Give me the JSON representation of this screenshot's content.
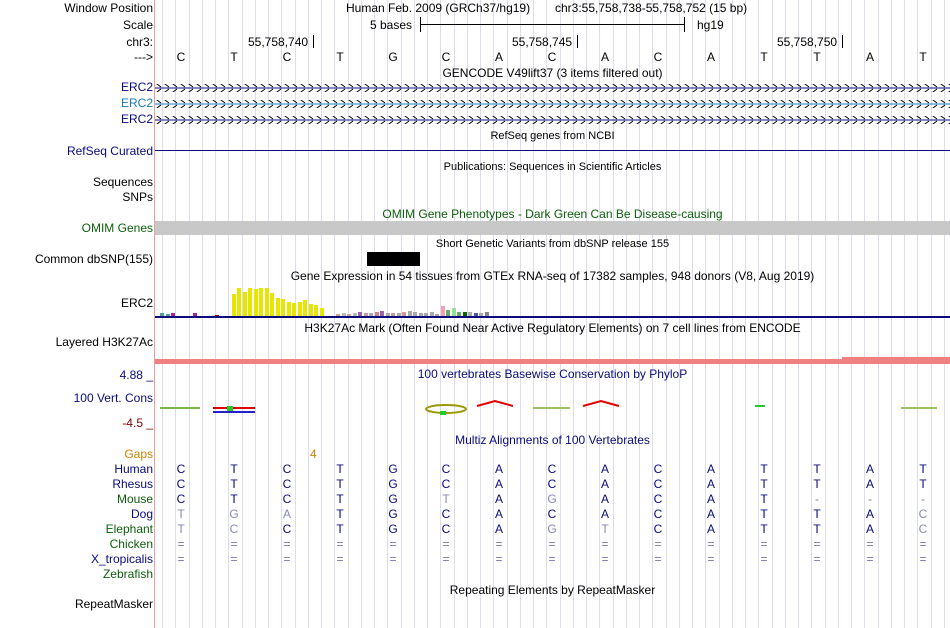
{
  "header": {
    "window_position_label": "Window Position",
    "scale_label": "Scale",
    "chr_label": "chr3:",
    "arrow_label": "--->",
    "assembly": "Human Feb. 2009 (GRCh37/hg19)",
    "position": "chr3:55,758,738-55,758,752 (15 bp)",
    "scale_value": "5 bases",
    "scale_db": "hg19",
    "coords": [
      "55,758,740",
      "55,758,745",
      "55,758,750"
    ]
  },
  "sequence": [
    "C",
    "T",
    "C",
    "T",
    "G",
    "C",
    "A",
    "C",
    "A",
    "C",
    "A",
    "T",
    "T",
    "A",
    "T"
  ],
  "tracks": {
    "gencode_title": "GENCODE V49lift37 (3 items filtered out)",
    "gencode_items": [
      "ERC2",
      "ERC2",
      "ERC2"
    ],
    "refseq_title": "RefSeq genes from NCBI",
    "refseq_label": "RefSeq Curated",
    "publications_title": "Publications: Sequences in Scientific Articles",
    "sequences_label": "Sequences",
    "snps_label": "SNPs",
    "omim_title": "OMIM Gene Phenotypes - Dark Green Can Be Disease-causing",
    "omim_label": "OMIM Genes",
    "dbsnp_title": "Short Genetic Variants from dbSNP release 155",
    "dbsnp_label": "Common dbSNP(155)",
    "gtex_title": "Gene Expression in 54 tissues from GTEx RNA-seq of 17382 samples, 948 donors (V8, Aug 2019)",
    "gtex_label": "ERC2",
    "h3k27ac_title": "H3K27Ac Mark (Often Found Near Active Regulatory Elements) on 7 cell lines from ENCODE",
    "h3k27ac_label": "Layered H3K27Ac",
    "phylop_title": "100 vertebrates Basewise Conservation by PhyloP",
    "phylop_label": "100 Vert. Cons",
    "phylop_max": "4.88 _",
    "phylop_min": "-4.5 _",
    "multiz_title": "Multiz Alignments of 100 Vertebrates",
    "gaps_label": "Gaps",
    "gaps_value": "4",
    "repeat_title": "Repeating Elements by RepeatMasker",
    "repeat_label": "RepeatMasker"
  },
  "alignment": [
    {
      "species": "Human",
      "bases": [
        "C",
        "T",
        "C",
        "T",
        "G",
        "C",
        "A",
        "C",
        "A",
        "C",
        "A",
        "T",
        "T",
        "A",
        "T"
      ]
    },
    {
      "species": "Rhesus",
      "bases": [
        "C",
        "T",
        "C",
        "T",
        "G",
        "C",
        "A",
        "C",
        "A",
        "C",
        "A",
        "T",
        "T",
        "A",
        "T"
      ]
    },
    {
      "species": "Mouse",
      "bases": [
        "C",
        "T",
        "C",
        "T",
        "G",
        "T",
        "A",
        "G",
        "A",
        "C",
        "A",
        "T",
        "-",
        "-",
        "-"
      ]
    },
    {
      "species": "Dog",
      "bases": [
        "T",
        "G",
        "A",
        "T",
        "G",
        "C",
        "A",
        "C",
        "A",
        "C",
        "A",
        "T",
        "T",
        "A",
        "C"
      ]
    },
    {
      "species": "Elephant",
      "bases": [
        "T",
        "C",
        "C",
        "T",
        "G",
        "C",
        "A",
        "G",
        "T",
        "C",
        "A",
        "T",
        "T",
        "A",
        "C"
      ]
    },
    {
      "species": "Chicken",
      "bases": [
        "=",
        "=",
        "=",
        "=",
        "=",
        "=",
        "=",
        "=",
        "=",
        "=",
        "=",
        "=",
        "=",
        "=",
        "="
      ]
    },
    {
      "species": "X_tropicalis",
      "bases": [
        "=",
        "=",
        "=",
        "=",
        "=",
        "=",
        "=",
        "=",
        "=",
        "=",
        "=",
        "=",
        "=",
        "=",
        "="
      ]
    },
    {
      "species": "Zebrafish",
      "bases": []
    }
  ],
  "colors": {
    "navy": "#0a0a7c",
    "dark_green": "#0b5e0b",
    "gencode_teal": "#1b7bb0",
    "gtex_yellow": "#e6e600",
    "h3k27ac_pink": "#f08080",
    "gaps_orange": "#d08000",
    "omim_gray": "#c8c8c8"
  }
}
